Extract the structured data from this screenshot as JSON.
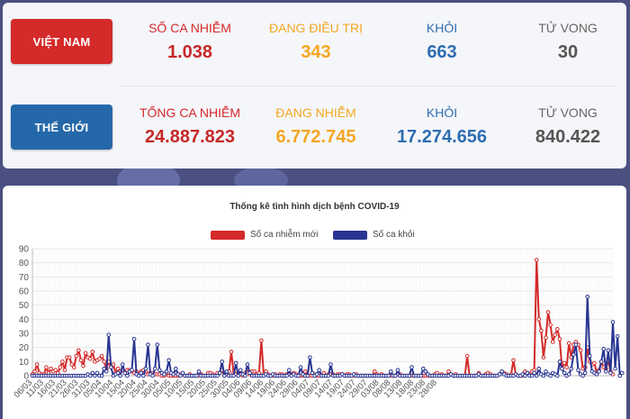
{
  "vietnam": {
    "region_label": "VIỆT NAM",
    "cases_label": "SỐ CA NHIỄM",
    "cases": "1.038",
    "treating_label": "ĐANG ĐIỀU TRỊ",
    "treating": "343",
    "recovered_label": "KHỎI",
    "recovered": "663",
    "deaths_label": "TỬ VONG",
    "deaths": "30"
  },
  "world": {
    "region_label": "THẾ GIỚI",
    "cases_label": "TỔNG CA NHIỄM",
    "cases": "24.887.823",
    "active_label": "ĐANG NHIỄM",
    "active": "6.772.745",
    "recovered_label": "KHỎI",
    "recovered": "17.274.656",
    "deaths_label": "TỬ VONG",
    "deaths": "840.422"
  },
  "colors": {
    "cases": "#d42a2a",
    "treating": "#f5a623",
    "recovered": "#2e6db0",
    "deaths": "#555555",
    "series_new": "#d42a2a",
    "series_recovered": "#283593"
  },
  "chart_data": {
    "type": "line",
    "title": "Thống kê tình hình dịch bệnh COVID-19",
    "xlabel": "",
    "ylabel": "",
    "ylim": [
      0,
      90
    ],
    "yticks": [
      0,
      10,
      20,
      30,
      40,
      50,
      60,
      70,
      80,
      90
    ],
    "grid": true,
    "legend_position": "top",
    "start_date": "06/03",
    "x_tick_labels": [
      "06/03",
      "11/03",
      "16/03",
      "21/03",
      "26/03",
      "31/03",
      "05/04",
      "10/04",
      "15/04",
      "20/04",
      "25/04",
      "30/04",
      "05/05",
      "10/05",
      "15/05",
      "20/05",
      "25/05",
      "30/05",
      "04/06",
      "09/06",
      "14/06",
      "19/06",
      "24/06",
      "29/06",
      "04/07",
      "09/07",
      "14/07",
      "19/07",
      "24/07",
      "29/07",
      "03/08",
      "08/08",
      "13/08",
      "18/08",
      "23/08",
      "28/08"
    ],
    "series": [
      {
        "name": "Số ca nhiễm mới",
        "values": [
          1,
          3,
          8,
          2,
          1,
          1,
          6,
          2,
          5,
          3,
          4,
          2,
          6,
          10,
          4,
          13,
          13,
          8,
          6,
          14,
          18,
          11,
          7,
          16,
          13,
          12,
          17,
          10,
          11,
          12,
          14,
          10,
          5,
          10,
          6,
          8,
          2,
          5,
          3,
          4,
          3,
          4,
          4,
          3,
          2,
          3,
          1,
          3,
          4,
          3,
          1,
          2,
          2,
          1,
          1,
          1,
          0,
          0,
          2,
          0,
          0,
          0,
          0,
          0,
          1,
          1,
          0,
          0,
          1,
          0,
          0,
          0,
          0,
          1,
          0,
          0,
          2,
          2,
          1,
          0,
          2,
          2,
          4,
          0,
          1,
          3,
          17,
          2,
          1,
          2,
          1,
          0,
          2,
          5,
          1,
          3,
          3,
          1,
          2,
          25,
          1,
          3,
          1,
          0,
          0,
          1,
          0,
          1,
          1,
          0,
          1,
          1,
          1,
          2,
          1,
          0,
          0,
          0,
          3,
          0,
          0,
          0,
          1,
          0,
          0,
          0,
          2,
          0,
          1,
          1,
          1,
          0,
          1,
          1,
          1,
          0,
          1,
          1,
          0,
          0,
          1,
          0,
          0,
          0,
          0,
          0,
          0,
          0,
          3,
          1,
          0,
          1,
          0,
          0,
          0,
          0,
          0,
          0,
          1,
          1,
          0,
          0,
          0,
          0,
          0,
          0,
          0,
          0,
          0,
          0,
          0,
          0,
          0,
          0,
          1,
          2,
          0,
          1,
          0,
          0,
          3,
          1,
          0,
          1,
          0,
          0,
          0,
          0,
          14,
          0,
          0,
          0,
          0,
          2,
          0,
          0,
          1,
          2,
          1,
          0,
          0,
          0,
          1,
          3,
          2,
          1,
          0,
          1,
          11,
          1,
          0,
          0,
          0,
          3,
          2,
          1,
          3,
          4,
          82,
          40,
          32,
          13,
          27,
          45,
          36,
          24,
          29,
          33,
          26,
          5,
          9,
          6,
          23,
          13,
          22,
          24,
          22,
          18,
          5,
          6,
          20,
          10,
          8,
          9,
          2,
          4,
          10,
          6,
          5,
          11,
          3,
          1
        ]
      },
      {
        "name": "Số ca khỏi",
        "values": [
          0,
          0,
          0,
          0,
          0,
          0,
          0,
          0,
          0,
          0,
          0,
          0,
          0,
          0,
          0,
          0,
          0,
          0,
          0,
          0,
          0,
          0,
          0,
          0,
          1,
          0,
          2,
          0,
          2,
          0,
          0,
          5,
          3,
          29,
          6,
          0,
          1,
          2,
          0,
          8,
          2,
          0,
          3,
          4,
          26,
          1,
          0,
          2,
          0,
          5,
          22,
          1,
          0,
          5,
          22,
          4,
          2,
          1,
          3,
          11,
          2,
          1,
          5,
          1,
          0,
          2,
          0,
          0,
          0,
          0,
          0,
          0,
          3,
          0,
          0,
          0,
          0,
          0,
          0,
          0,
          0,
          2,
          10,
          0,
          3,
          0,
          0,
          0,
          9,
          0,
          4,
          1,
          0,
          8,
          2,
          0,
          0,
          0,
          0,
          0,
          0,
          1,
          0,
          0,
          1,
          0,
          0,
          0,
          0,
          0,
          0,
          4,
          0,
          1,
          0,
          0,
          6,
          1,
          0,
          0,
          13,
          2,
          0,
          1,
          4,
          0,
          0,
          0,
          0,
          8,
          0,
          0,
          0,
          0,
          1,
          0,
          0,
          0,
          0,
          1,
          0,
          0,
          0,
          0,
          0,
          0,
          0,
          0,
          0,
          0,
          0,
          0,
          0,
          0,
          0,
          3,
          0,
          0,
          4,
          0,
          0,
          0,
          0,
          0,
          6,
          0,
          0,
          0,
          0,
          5,
          3,
          1,
          0,
          0,
          0,
          0,
          0,
          0,
          0,
          0,
          0,
          1,
          0,
          0,
          0,
          0,
          0,
          0,
          0,
          0,
          0,
          0,
          0,
          1,
          0,
          0,
          0,
          0,
          0,
          0,
          0,
          0,
          1,
          3,
          1,
          0,
          0,
          0,
          0,
          1,
          0,
          0,
          1,
          0,
          2,
          0,
          0,
          2,
          0,
          5,
          1,
          0,
          3,
          1,
          0,
          2,
          1,
          0,
          10,
          5,
          2,
          0,
          1,
          5,
          15,
          22,
          4,
          1,
          0,
          2,
          56,
          14,
          3,
          2,
          1,
          3,
          10,
          19,
          3,
          18,
          2,
          38,
          5,
          28,
          0,
          2
        ]
      }
    ]
  }
}
